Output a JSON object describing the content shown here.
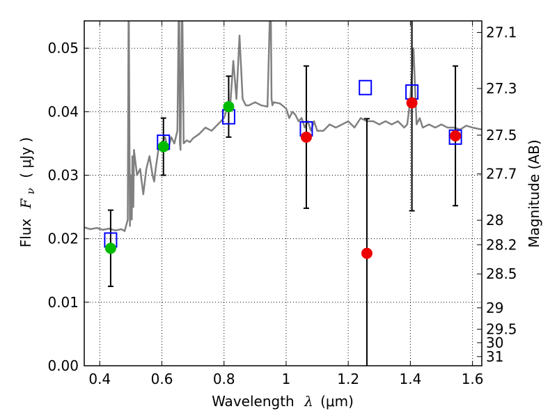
{
  "chart_data": {
    "type": "scatter",
    "xlabel": {
      "text": "Wavelength",
      "symbol": "λ",
      "unit": "(μm)"
    },
    "ylabel": {
      "prefix": "Flux",
      "symbol": "F",
      "subscript": "ν",
      "unit": "( μJy )"
    },
    "y2label": "Magnitude (AB)",
    "xlim": [
      0.35,
      1.63
    ],
    "ylim": [
      0.0,
      0.0543
    ],
    "xticks": [
      {
        "value": 0.4,
        "label": "0.4"
      },
      {
        "value": 0.6,
        "label": "0.6"
      },
      {
        "value": 0.8,
        "label": "0.8"
      },
      {
        "value": 1.0,
        "label": "1"
      },
      {
        "value": 1.2,
        "label": "1.2"
      },
      {
        "value": 1.4,
        "label": "1.4"
      },
      {
        "value": 1.6,
        "label": "1.6"
      }
    ],
    "yticks": [
      {
        "value": 0.0,
        "label": "0.00"
      },
      {
        "value": 0.01,
        "label": "0.01"
      },
      {
        "value": 0.02,
        "label": "0.02"
      },
      {
        "value": 0.03,
        "label": "0.03"
      },
      {
        "value": 0.04,
        "label": "0.04"
      },
      {
        "value": 0.05,
        "label": "0.05"
      }
    ],
    "y2ticks": [
      {
        "value": 27.1,
        "label": "27.1"
      },
      {
        "value": 27.3,
        "label": "27.3"
      },
      {
        "value": 27.5,
        "label": "27.5"
      },
      {
        "value": 27.7,
        "label": "27.7"
      },
      {
        "value": 28.0,
        "label": "28"
      },
      {
        "value": 28.2,
        "label": "28.2"
      },
      {
        "value": 28.5,
        "label": "28.5"
      },
      {
        "value": 29.0,
        "label": "29"
      },
      {
        "value": 29.5,
        "label": "29.5"
      },
      {
        "value": 30.0,
        "label": "30"
      },
      {
        "value": 31.0,
        "label": "31"
      }
    ],
    "grid": true,
    "colors": {
      "model": "#808080",
      "model_flux": "#0000ff",
      "green": "#00bb00",
      "red": "#ee0000",
      "errorbar": "#000000"
    },
    "model_spectrum": {
      "x": [
        0.35,
        0.37,
        0.39,
        0.41,
        0.43,
        0.45,
        0.47,
        0.48,
        0.49,
        0.493,
        0.497,
        0.5,
        0.503,
        0.505,
        0.508,
        0.51,
        0.52,
        0.53,
        0.535,
        0.54,
        0.55,
        0.56,
        0.57,
        0.575,
        0.58,
        0.59,
        0.6,
        0.61,
        0.62,
        0.63,
        0.64,
        0.65,
        0.655,
        0.658,
        0.66,
        0.665,
        0.67,
        0.68,
        0.69,
        0.7,
        0.72,
        0.74,
        0.76,
        0.78,
        0.8,
        0.81,
        0.82,
        0.83,
        0.84,
        0.85,
        0.86,
        0.87,
        0.88,
        0.9,
        0.92,
        0.94,
        0.95,
        0.953,
        0.956,
        0.96,
        0.98,
        1.0,
        1.01,
        1.02,
        1.03,
        1.04,
        1.05,
        1.06,
        1.07,
        1.08,
        1.09,
        1.1,
        1.12,
        1.14,
        1.16,
        1.18,
        1.2,
        1.22,
        1.24,
        1.26,
        1.28,
        1.3,
        1.32,
        1.34,
        1.36,
        1.38,
        1.39,
        1.4,
        1.41,
        1.42,
        1.43,
        1.44,
        1.46,
        1.48,
        1.5,
        1.52,
        1.54,
        1.56,
        1.58,
        1.6,
        1.63
      ],
      "y": [
        0.0218,
        0.0215,
        0.0217,
        0.0214,
        0.0216,
        0.0213,
        0.0215,
        0.0212,
        0.023,
        0.06,
        0.022,
        0.03,
        0.023,
        0.033,
        0.025,
        0.034,
        0.03,
        0.031,
        0.029,
        0.027,
        0.031,
        0.033,
        0.03,
        0.029,
        0.031,
        0.0345,
        0.035,
        0.036,
        0.034,
        0.036,
        0.035,
        0.037,
        0.06,
        0.035,
        0.034,
        0.06,
        0.035,
        0.0355,
        0.0352,
        0.0358,
        0.0365,
        0.0375,
        0.037,
        0.038,
        0.039,
        0.0405,
        0.041,
        0.048,
        0.042,
        0.052,
        0.042,
        0.041,
        0.041,
        0.0415,
        0.041,
        0.0408,
        0.06,
        0.042,
        0.041,
        0.0415,
        0.0413,
        0.0405,
        0.039,
        0.04,
        0.0395,
        0.0385,
        0.039,
        0.0375,
        0.0385,
        0.037,
        0.0385,
        0.037,
        0.037,
        0.038,
        0.0375,
        0.038,
        0.0385,
        0.0375,
        0.039,
        0.0385,
        0.0385,
        0.038,
        0.0385,
        0.038,
        0.0385,
        0.0375,
        0.038,
        0.042,
        0.05,
        0.038,
        0.039,
        0.0375,
        0.038,
        0.0375,
        0.038,
        0.0375,
        0.0375,
        0.0372,
        0.0378,
        0.0375,
        0.0372
      ]
    },
    "model_flux_points": {
      "x": [
        0.435,
        0.605,
        0.815,
        1.065,
        1.255,
        1.405,
        1.545
      ],
      "y": [
        0.0198,
        0.0352,
        0.0392,
        0.0373,
        0.0438,
        0.0431,
        0.036
      ]
    },
    "observed_green": {
      "x": [
        0.435,
        0.605,
        0.815
      ],
      "y": [
        0.0185,
        0.0345,
        0.0408
      ],
      "yerr": [
        0.006,
        0.0045,
        0.0048
      ]
    },
    "observed_red": {
      "x": [
        1.065,
        1.26,
        1.405,
        1.545
      ],
      "y": [
        0.036,
        0.0177,
        0.0414,
        0.0362
      ],
      "yerr": [
        0.0112,
        0.0212,
        0.017,
        0.011
      ]
    }
  }
}
